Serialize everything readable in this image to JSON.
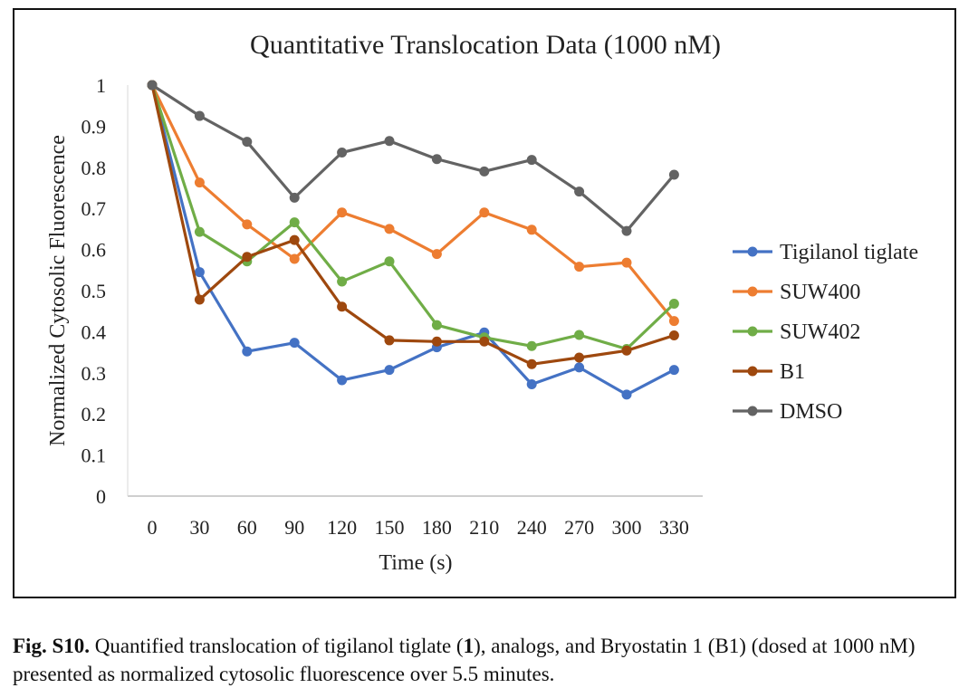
{
  "chart_data": {
    "type": "line",
    "title": "Quantitative Translocation Data (1000 nM)",
    "xlabel": "Time (s)",
    "ylabel": "Normalized Cytosolic Fluorescence",
    "x": [
      0,
      30,
      60,
      90,
      120,
      150,
      180,
      210,
      240,
      270,
      300,
      330
    ],
    "ylim": [
      0,
      1
    ],
    "yticks": [
      "0",
      "0.1",
      "0.2",
      "0.3",
      "0.4",
      "0.5",
      "0.6",
      "0.7",
      "0.8",
      "0.9",
      "1"
    ],
    "grid": false,
    "legend_position": "right",
    "series": [
      {
        "name": "Tigilanol tiglate",
        "color": "#4472C4",
        "values": [
          1,
          0.545,
          0.352,
          0.373,
          0.282,
          0.307,
          0.362,
          0.398,
          0.272,
          0.313,
          0.247,
          0.307
        ]
      },
      {
        "name": "SUW400",
        "color": "#ED7D31",
        "values": [
          1,
          0.763,
          0.661,
          0.577,
          0.69,
          0.65,
          0.589,
          0.69,
          0.648,
          0.558,
          0.568,
          0.426
        ]
      },
      {
        "name": "SUW402",
        "color": "#70AD47",
        "values": [
          1,
          0.643,
          0.571,
          0.666,
          0.522,
          0.571,
          0.416,
          0.386,
          0.365,
          0.392,
          0.358,
          0.468
        ]
      },
      {
        "name": "B1",
        "color": "#9E480E",
        "values": [
          1,
          0.478,
          0.582,
          0.623,
          0.461,
          0.379,
          0.376,
          0.376,
          0.321,
          0.337,
          0.354,
          0.391
        ]
      },
      {
        "name": "DMSO",
        "color": "#636363",
        "values": [
          1,
          0.925,
          0.862,
          0.726,
          0.836,
          0.864,
          0.82,
          0.79,
          0.818,
          0.741,
          0.645,
          0.782
        ]
      }
    ]
  },
  "caption": {
    "label": "Fig. S10.",
    "text_before": " Quantified translocation of tigilanol tiglate (",
    "compound_number": "1",
    "text_after": "), analogs, and Bryostatin 1 (B1) (dosed at 1000 nM) presented as normalized cytosolic fluorescence over 5.5 minutes."
  }
}
